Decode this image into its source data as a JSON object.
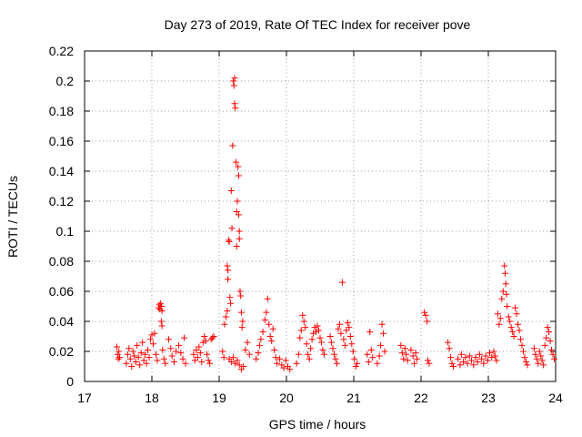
{
  "chart_data": {
    "type": "scatter",
    "title": "Day 273 of 2019, Rate Of TEC Index for receiver pove",
    "xlabel": "GPS time / hours",
    "ylabel": "ROTI / TECUs",
    "xlim": [
      17,
      24
    ],
    "ylim": [
      0,
      0.22
    ],
    "grid": true,
    "x_ticks": [
      "17",
      "18",
      "19",
      "20",
      "21",
      "22",
      "23",
      "24"
    ],
    "y_ticks": [
      "0",
      "0.02",
      "0.04",
      "0.06",
      "0.08",
      "0.1",
      "0.12",
      "0.14",
      "0.16",
      "0.18",
      "0.2",
      "0.22"
    ],
    "marker": "+",
    "color": "#ff0000",
    "series": [
      {
        "name": "ROTI",
        "points": [
          [
            17.48,
            0.023
          ],
          [
            17.49,
            0.018
          ],
          [
            17.5,
            0.015
          ],
          [
            17.51,
            0.02
          ],
          [
            17.52,
            0.016
          ],
          [
            17.62,
            0.012
          ],
          [
            17.64,
            0.018
          ],
          [
            17.66,
            0.022
          ],
          [
            17.68,
            0.015
          ],
          [
            17.7,
            0.01
          ],
          [
            17.72,
            0.02
          ],
          [
            17.74,
            0.017
          ],
          [
            17.76,
            0.013
          ],
          [
            17.78,
            0.024
          ],
          [
            17.8,
            0.016
          ],
          [
            17.82,
            0.011
          ],
          [
            17.84,
            0.019
          ],
          [
            17.86,
            0.026
          ],
          [
            17.88,
            0.014
          ],
          [
            17.9,
            0.018
          ],
          [
            17.92,
            0.012
          ],
          [
            17.94,
            0.021
          ],
          [
            17.96,
            0.016
          ],
          [
            17.98,
            0.028
          ],
          [
            18.0,
            0.031
          ],
          [
            18.02,
            0.025
          ],
          [
            18.04,
            0.032
          ],
          [
            18.06,
            0.018
          ],
          [
            18.08,
            0.014
          ],
          [
            18.1,
            0.049
          ],
          [
            18.11,
            0.051
          ],
          [
            18.12,
            0.048
          ],
          [
            18.13,
            0.052
          ],
          [
            18.14,
            0.05
          ],
          [
            18.15,
            0.047
          ],
          [
            18.14,
            0.04
          ],
          [
            18.15,
            0.037
          ],
          [
            18.16,
            0.021
          ],
          [
            18.18,
            0.015
          ],
          [
            18.2,
            0.012
          ],
          [
            18.25,
            0.028
          ],
          [
            18.28,
            0.022
          ],
          [
            18.3,
            0.017
          ],
          [
            18.33,
            0.013
          ],
          [
            18.36,
            0.02
          ],
          [
            18.4,
            0.024
          ],
          [
            18.43,
            0.019
          ],
          [
            18.46,
            0.015
          ],
          [
            18.48,
            0.029
          ],
          [
            18.5,
            0.012
          ],
          [
            18.62,
            0.018
          ],
          [
            18.64,
            0.014
          ],
          [
            18.66,
            0.021
          ],
          [
            18.68,
            0.016
          ],
          [
            18.7,
            0.023
          ],
          [
            18.72,
            0.019
          ],
          [
            18.74,
            0.013
          ],
          [
            18.76,
            0.026
          ],
          [
            18.78,
            0.03
          ],
          [
            18.8,
            0.027
          ],
          [
            18.82,
            0.018
          ],
          [
            18.84,
            0.014
          ],
          [
            18.86,
            0.012
          ],
          [
            18.88,
            0.028
          ],
          [
            18.9,
            0.029
          ],
          [
            18.92,
            0.03
          ],
          [
            19.05,
            0.02
          ],
          [
            19.07,
            0.016
          ],
          [
            19.08,
            0.038
          ],
          [
            19.1,
            0.043
          ],
          [
            19.12,
            0.047
          ],
          [
            19.12,
            0.077
          ],
          [
            19.13,
            0.074
          ],
          [
            19.13,
            0.068
          ],
          [
            19.14,
            0.094
          ],
          [
            19.15,
            0.093
          ],
          [
            19.16,
            0.056
          ],
          [
            19.17,
            0.052
          ],
          [
            19.18,
            0.127
          ],
          [
            19.19,
            0.102
          ],
          [
            19.2,
            0.157
          ],
          [
            19.21,
            0.2
          ],
          [
            19.22,
            0.197
          ],
          [
            19.23,
            0.202
          ],
          [
            19.23,
            0.185
          ],
          [
            19.24,
            0.182
          ],
          [
            19.25,
            0.146
          ],
          [
            19.26,
            0.113
          ],
          [
            19.26,
            0.09
          ],
          [
            19.27,
            0.12
          ],
          [
            19.28,
            0.143
          ],
          [
            19.29,
            0.137
          ],
          [
            19.29,
            0.111
          ],
          [
            19.3,
            0.1
          ],
          [
            19.3,
            0.095
          ],
          [
            19.31,
            0.06
          ],
          [
            19.32,
            0.057
          ],
          [
            19.33,
            0.046
          ],
          [
            19.34,
            0.036
          ],
          [
            19.35,
            0.04
          ],
          [
            19.15,
            0.015
          ],
          [
            19.18,
            0.013
          ],
          [
            19.21,
            0.016
          ],
          [
            19.24,
            0.012
          ],
          [
            19.27,
            0.014
          ],
          [
            19.3,
            0.011
          ],
          [
            19.33,
            0.008
          ],
          [
            19.36,
            0.01
          ],
          [
            19.39,
            0.021
          ],
          [
            19.42,
            0.026
          ],
          [
            19.45,
            0.018
          ],
          [
            19.55,
            0.015
          ],
          [
            19.58,
            0.019
          ],
          [
            19.6,
            0.024
          ],
          [
            19.62,
            0.028
          ],
          [
            19.65,
            0.033
          ],
          [
            19.68,
            0.041
          ],
          [
            19.7,
            0.046
          ],
          [
            19.72,
            0.055
          ],
          [
            19.74,
            0.038
          ],
          [
            19.76,
            0.03
          ],
          [
            19.78,
            0.027
          ],
          [
            19.8,
            0.035
          ],
          [
            19.82,
            0.021
          ],
          [
            19.84,
            0.016
          ],
          [
            19.86,
            0.012
          ],
          [
            19.9,
            0.015
          ],
          [
            19.93,
            0.011
          ],
          [
            19.96,
            0.009
          ],
          [
            19.99,
            0.014
          ],
          [
            20.02,
            0.01
          ],
          [
            20.05,
            0.008
          ],
          [
            20.15,
            0.012
          ],
          [
            20.18,
            0.018
          ],
          [
            20.2,
            0.029
          ],
          [
            20.22,
            0.034
          ],
          [
            20.24,
            0.044
          ],
          [
            20.26,
            0.04
          ],
          [
            20.28,
            0.036
          ],
          [
            20.3,
            0.025
          ],
          [
            20.32,
            0.018
          ],
          [
            20.34,
            0.015
          ],
          [
            20.36,
            0.022
          ],
          [
            20.38,
            0.028
          ],
          [
            20.4,
            0.032
          ],
          [
            20.42,
            0.036
          ],
          [
            20.44,
            0.033
          ],
          [
            20.46,
            0.037
          ],
          [
            20.48,
            0.034
          ],
          [
            20.5,
            0.029
          ],
          [
            20.52,
            0.026
          ],
          [
            20.54,
            0.021
          ],
          [
            20.56,
            0.018
          ],
          [
            20.65,
            0.03
          ],
          [
            20.67,
            0.026
          ],
          [
            20.69,
            0.022
          ],
          [
            20.71,
            0.018
          ],
          [
            20.73,
            0.015
          ],
          [
            20.75,
            0.012
          ],
          [
            20.77,
            0.035
          ],
          [
            20.79,
            0.038
          ],
          [
            20.81,
            0.032
          ],
          [
            20.83,
            0.066
          ],
          [
            20.85,
            0.028
          ],
          [
            20.87,
            0.024
          ],
          [
            20.89,
            0.034
          ],
          [
            20.91,
            0.039
          ],
          [
            20.93,
            0.036
          ],
          [
            20.95,
            0.03
          ],
          [
            20.97,
            0.025
          ],
          [
            20.99,
            0.02
          ],
          [
            21.01,
            0.015
          ],
          [
            21.03,
            0.01
          ],
          [
            21.05,
            0.012
          ],
          [
            21.2,
            0.018
          ],
          [
            21.22,
            0.013
          ],
          [
            21.24,
            0.033
          ],
          [
            21.26,
            0.021
          ],
          [
            21.28,
            0.016
          ],
          [
            21.35,
            0.012
          ],
          [
            21.38,
            0.017
          ],
          [
            21.4,
            0.024
          ],
          [
            21.42,
            0.038
          ],
          [
            21.44,
            0.032
          ],
          [
            21.46,
            0.02
          ],
          [
            21.7,
            0.024
          ],
          [
            21.72,
            0.019
          ],
          [
            21.74,
            0.015
          ],
          [
            21.76,
            0.022
          ],
          [
            21.78,
            0.018
          ],
          [
            21.8,
            0.014
          ],
          [
            21.85,
            0.021
          ],
          [
            21.88,
            0.017
          ],
          [
            21.9,
            0.012
          ],
          [
            21.92,
            0.019
          ],
          [
            21.94,
            0.015
          ],
          [
            22.05,
            0.046
          ],
          [
            22.07,
            0.044
          ],
          [
            22.09,
            0.04
          ],
          [
            22.1,
            0.014
          ],
          [
            22.12,
            0.012
          ],
          [
            22.4,
            0.026
          ],
          [
            22.42,
            0.022
          ],
          [
            22.44,
            0.016
          ],
          [
            22.46,
            0.012
          ],
          [
            22.48,
            0.01
          ],
          [
            22.55,
            0.015
          ],
          [
            22.58,
            0.011
          ],
          [
            22.6,
            0.018
          ],
          [
            22.63,
            0.013
          ],
          [
            22.66,
            0.016
          ],
          [
            22.69,
            0.012
          ],
          [
            22.72,
            0.017
          ],
          [
            22.75,
            0.014
          ],
          [
            22.78,
            0.011
          ],
          [
            22.81,
            0.016
          ],
          [
            22.84,
            0.013
          ],
          [
            22.87,
            0.018
          ],
          [
            22.9,
            0.015
          ],
          [
            22.93,
            0.012
          ],
          [
            22.96,
            0.017
          ],
          [
            22.99,
            0.014
          ],
          [
            23.02,
            0.019
          ],
          [
            23.05,
            0.016
          ],
          [
            23.08,
            0.02
          ],
          [
            23.1,
            0.017
          ],
          [
            23.12,
            0.014
          ],
          [
            23.14,
            0.045
          ],
          [
            23.16,
            0.038
          ],
          [
            23.18,
            0.042
          ],
          [
            23.2,
            0.055
          ],
          [
            23.22,
            0.06
          ],
          [
            23.24,
            0.077
          ],
          [
            23.25,
            0.072
          ],
          [
            23.26,
            0.065
          ],
          [
            23.27,
            0.058
          ],
          [
            23.28,
            0.05
          ],
          [
            23.3,
            0.043
          ],
          [
            23.32,
            0.04
          ],
          [
            23.34,
            0.036
          ],
          [
            23.36,
            0.033
          ],
          [
            23.38,
            0.03
          ],
          [
            23.4,
            0.049
          ],
          [
            23.42,
            0.045
          ],
          [
            23.44,
            0.038
          ],
          [
            23.46,
            0.034
          ],
          [
            23.48,
            0.028
          ],
          [
            23.5,
            0.024
          ],
          [
            23.52,
            0.02
          ],
          [
            23.54,
            0.016
          ],
          [
            23.56,
            0.013
          ],
          [
            23.58,
            0.011
          ],
          [
            23.68,
            0.022
          ],
          [
            23.7,
            0.018
          ],
          [
            23.72,
            0.015
          ],
          [
            23.74,
            0.012
          ],
          [
            23.76,
            0.02
          ],
          [
            23.78,
            0.017
          ],
          [
            23.8,
            0.014
          ],
          [
            23.82,
            0.011
          ],
          [
            23.84,
            0.024
          ],
          [
            23.86,
            0.029
          ],
          [
            23.88,
            0.036
          ],
          [
            23.9,
            0.033
          ],
          [
            23.92,
            0.027
          ],
          [
            23.94,
            0.021
          ],
          [
            23.96,
            0.018
          ],
          [
            23.98,
            0.015
          ]
        ]
      }
    ]
  }
}
